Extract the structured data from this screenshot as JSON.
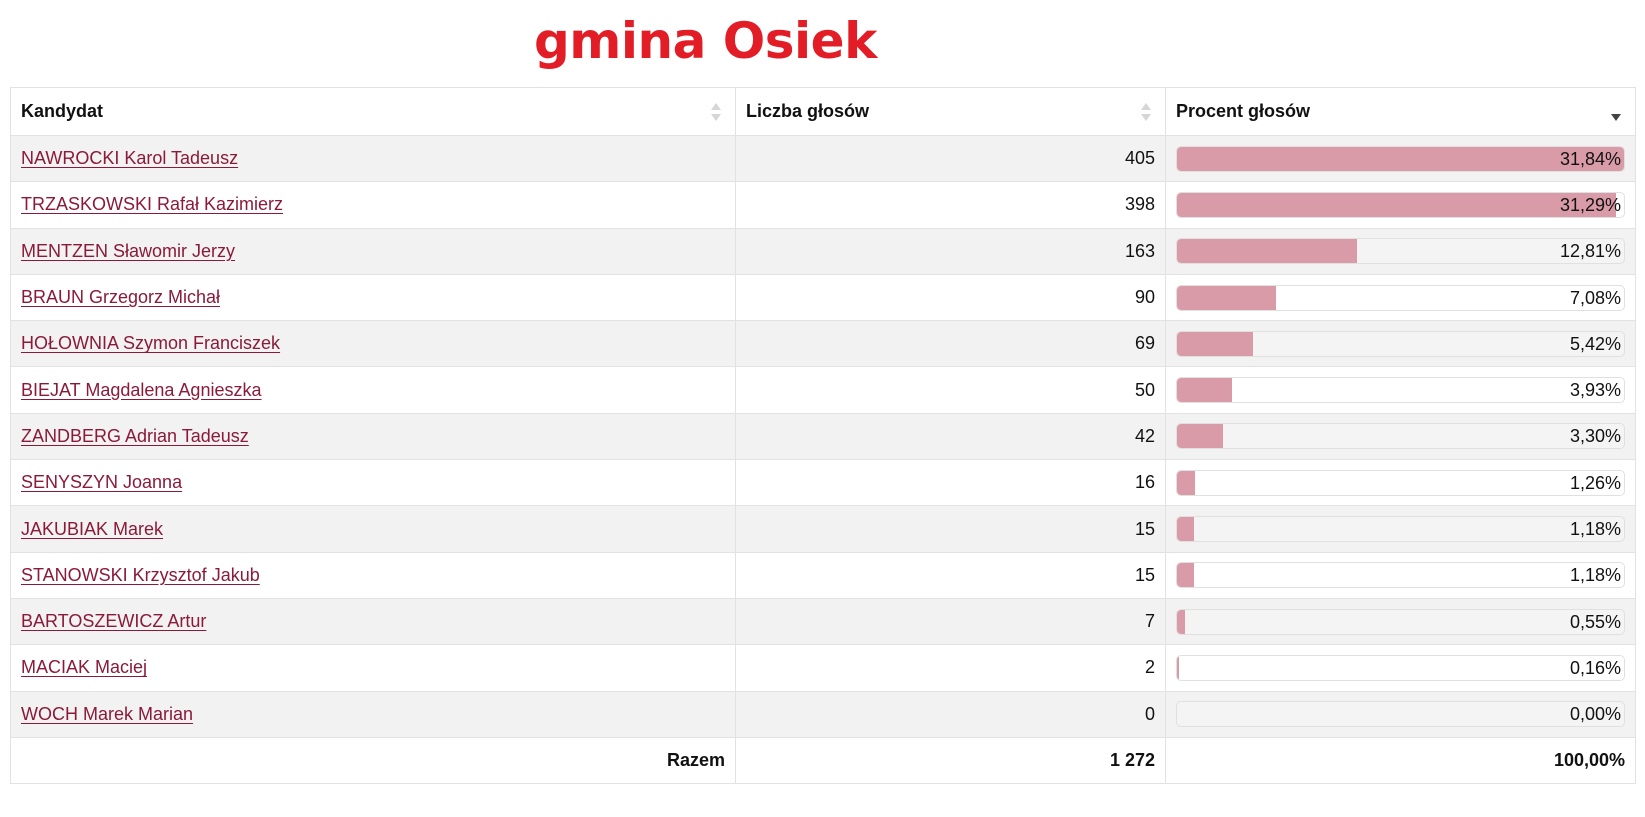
{
  "title": "gmina Osiek",
  "colors": {
    "title": "#e21d26",
    "link": "#8b1a3a",
    "bar": "#d99ba8"
  },
  "table": {
    "headers": {
      "candidate": "Kandydat",
      "votes": "Liczba głosów",
      "percent": "Procent głosów"
    },
    "sort": {
      "column": "percent",
      "direction": "desc"
    },
    "rows": [
      {
        "name": "NAWROCKI Karol Tadeusz",
        "votes": "405",
        "percent": "31,84%",
        "value": 31.84
      },
      {
        "name": "TRZASKOWSKI Rafał Kazimierz",
        "votes": "398",
        "percent": "31,29%",
        "value": 31.29
      },
      {
        "name": "MENTZEN Sławomir Jerzy",
        "votes": "163",
        "percent": "12,81%",
        "value": 12.81
      },
      {
        "name": "BRAUN Grzegorz Michał",
        "votes": "90",
        "percent": "7,08%",
        "value": 7.08
      },
      {
        "name": "HOŁOWNIA Szymon Franciszek",
        "votes": "69",
        "percent": "5,42%",
        "value": 5.42
      },
      {
        "name": "BIEJAT Magdalena Agnieszka",
        "votes": "50",
        "percent": "3,93%",
        "value": 3.93
      },
      {
        "name": "ZANDBERG Adrian Tadeusz",
        "votes": "42",
        "percent": "3,30%",
        "value": 3.3
      },
      {
        "name": "SENYSZYN Joanna",
        "votes": "16",
        "percent": "1,26%",
        "value": 1.26
      },
      {
        "name": "JAKUBIAK Marek",
        "votes": "15",
        "percent": "1,18%",
        "value": 1.18
      },
      {
        "name": "STANOWSKI Krzysztof Jakub",
        "votes": "15",
        "percent": "1,18%",
        "value": 1.18
      },
      {
        "name": "BARTOSZEWICZ Artur",
        "votes": "7",
        "percent": "0,55%",
        "value": 0.55
      },
      {
        "name": "MACIAK Maciej",
        "votes": "2",
        "percent": "0,16%",
        "value": 0.16
      },
      {
        "name": "WOCH Marek Marian",
        "votes": "0",
        "percent": "0,00%",
        "value": 0.0
      }
    ],
    "footer": {
      "label": "Razem",
      "votes": "1 272",
      "percent": "100,00%"
    }
  }
}
